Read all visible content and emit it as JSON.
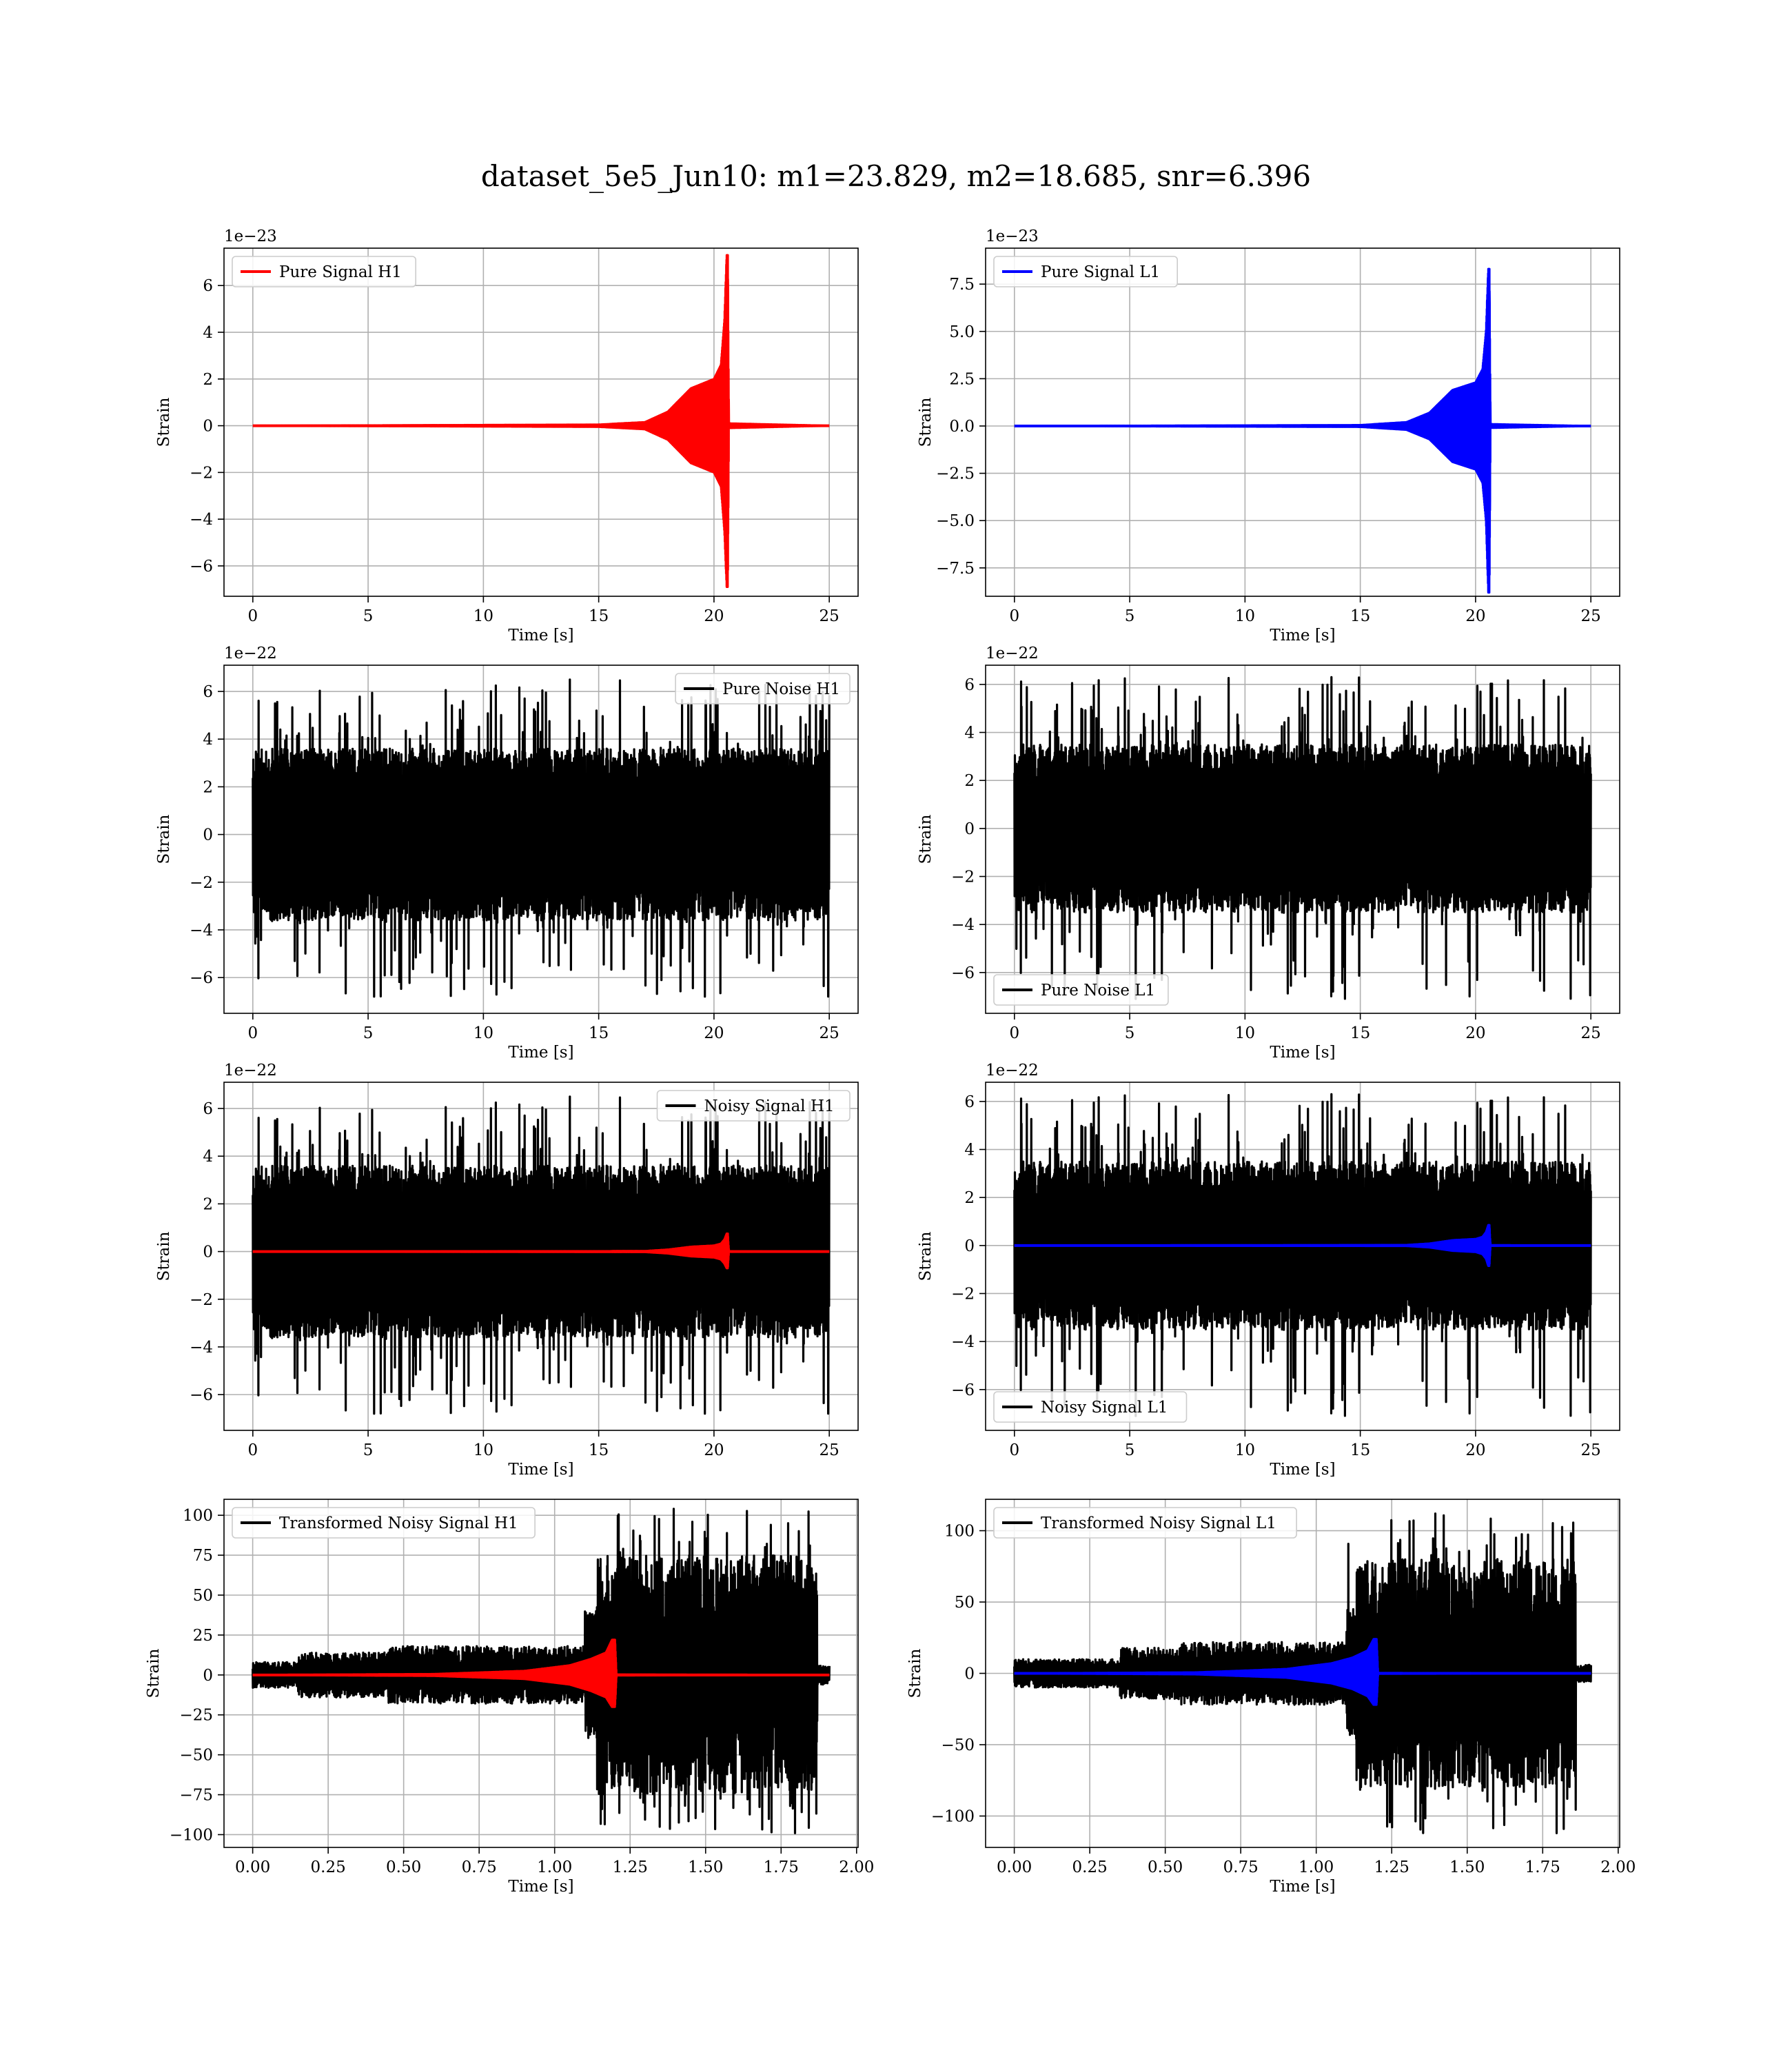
{
  "figure": {
    "suptitle": "dataset_5e5_Jun10: m1=23.829, m2=18.685, snr=6.396"
  },
  "chart_data": [
    {
      "id": "pure-signal-h1",
      "type": "line",
      "xlabel": "Time [s]",
      "ylabel": "Strain",
      "offset_label": "1e−23",
      "xlim": [
        -1.25,
        26.25
      ],
      "ylim": [
        -7.3,
        7.6
      ],
      "xticks": [
        0,
        5,
        10,
        15,
        20,
        25
      ],
      "xtick_labels": [
        "0",
        "5",
        "10",
        "15",
        "20",
        "25"
      ],
      "yticks": [
        -6,
        -4,
        -2,
        0,
        2,
        4,
        6
      ],
      "ytick_labels": [
        "−6",
        "−4",
        "−2",
        "0",
        "2",
        "4",
        "6"
      ],
      "grid": true,
      "legend": {
        "position": "upper-left"
      },
      "series": [
        {
          "name": "Pure Signal H1",
          "color": "#ff0000",
          "kind": "chirp",
          "x_range": [
            0,
            25
          ],
          "merger_time": 20.6,
          "envelope": [
            [
              0,
              0.0
            ],
            [
              15,
              0.05
            ],
            [
              17,
              0.15
            ],
            [
              18,
              0.6
            ],
            [
              19,
              1.6
            ],
            [
              20,
              2.0
            ],
            [
              20.3,
              2.6
            ],
            [
              20.45,
              4.5
            ],
            [
              20.55,
              7.3
            ],
            [
              20.6,
              7.3
            ],
            [
              20.65,
              0.1
            ],
            [
              25,
              0.0
            ]
          ],
          "envelope_neg": [
            [
              0,
              0.0
            ],
            [
              15,
              0.05
            ],
            [
              17,
              0.15
            ],
            [
              18,
              0.6
            ],
            [
              19,
              1.6
            ],
            [
              20,
              2.0
            ],
            [
              20.3,
              2.6
            ],
            [
              20.45,
              4.5
            ],
            [
              20.55,
              6.9
            ],
            [
              20.6,
              6.9
            ],
            [
              20.65,
              0.1
            ],
            [
              25,
              0.0
            ]
          ]
        }
      ]
    },
    {
      "id": "pure-signal-l1",
      "type": "line",
      "xlabel": "Time [s]",
      "ylabel": "Strain",
      "offset_label": "1e−23",
      "xlim": [
        -1.25,
        26.25
      ],
      "ylim": [
        -9.0,
        9.4
      ],
      "xticks": [
        0,
        5,
        10,
        15,
        20,
        25
      ],
      "xtick_labels": [
        "0",
        "5",
        "10",
        "15",
        "20",
        "25"
      ],
      "yticks": [
        -7.5,
        -5.0,
        -2.5,
        0.0,
        2.5,
        5.0,
        7.5
      ],
      "ytick_labels": [
        "−7.5",
        "−5.0",
        "−2.5",
        "0.0",
        "2.5",
        "5.0",
        "7.5"
      ],
      "grid": true,
      "legend": {
        "position": "upper-left"
      },
      "series": [
        {
          "name": "Pure Signal L1",
          "color": "#0000ff",
          "kind": "chirp",
          "x_range": [
            0,
            25
          ],
          "merger_time": 20.6,
          "envelope": [
            [
              0,
              0.0
            ],
            [
              15,
              0.05
            ],
            [
              17,
              0.2
            ],
            [
              18,
              0.7
            ],
            [
              19,
              1.9
            ],
            [
              20,
              2.3
            ],
            [
              20.3,
              3.0
            ],
            [
              20.45,
              5.0
            ],
            [
              20.55,
              8.3
            ],
            [
              20.6,
              8.3
            ],
            [
              20.65,
              0.1
            ],
            [
              25,
              0.0
            ]
          ],
          "envelope_neg": [
            [
              0,
              0.0
            ],
            [
              15,
              0.05
            ],
            [
              17,
              0.2
            ],
            [
              18,
              0.7
            ],
            [
              19,
              1.9
            ],
            [
              20,
              2.3
            ],
            [
              20.3,
              3.0
            ],
            [
              20.45,
              5.0
            ],
            [
              20.55,
              8.8
            ],
            [
              20.6,
              8.8
            ],
            [
              20.65,
              0.1
            ],
            [
              25,
              0.0
            ]
          ]
        }
      ]
    },
    {
      "id": "pure-noise-h1",
      "type": "line",
      "xlabel": "Time [s]",
      "ylabel": "Strain",
      "offset_label": "1e−22",
      "xlim": [
        -1.25,
        26.25
      ],
      "ylim": [
        -7.5,
        7.1
      ],
      "xticks": [
        0,
        5,
        10,
        15,
        20,
        25
      ],
      "xtick_labels": [
        "0",
        "5",
        "10",
        "15",
        "20",
        "25"
      ],
      "yticks": [
        -6,
        -4,
        -2,
        0,
        2,
        4,
        6
      ],
      "ytick_labels": [
        "−6",
        "−4",
        "−2",
        "0",
        "2",
        "4",
        "6"
      ],
      "grid": true,
      "legend": {
        "position": "upper-right"
      },
      "series": [
        {
          "name": "Pure Noise H1",
          "color": "#000000",
          "kind": "noise",
          "x_range": [
            0,
            25
          ],
          "band": 3.6,
          "spike_max": 6.5,
          "spike_min": -6.8,
          "seed": 11
        }
      ]
    },
    {
      "id": "pure-noise-l1",
      "type": "line",
      "xlabel": "Time [s]",
      "ylabel": "Strain",
      "offset_label": "1e−22",
      "xlim": [
        -1.25,
        26.25
      ],
      "ylim": [
        -7.7,
        6.8
      ],
      "xticks": [
        0,
        5,
        10,
        15,
        20,
        25
      ],
      "xtick_labels": [
        "0",
        "5",
        "10",
        "15",
        "20",
        "25"
      ],
      "yticks": [
        -6,
        -4,
        -2,
        0,
        2,
        4,
        6
      ],
      "ytick_labels": [
        "−6",
        "−4",
        "−2",
        "0",
        "2",
        "4",
        "6"
      ],
      "grid": true,
      "legend": {
        "position": "lower-left"
      },
      "series": [
        {
          "name": "Pure Noise L1",
          "color": "#000000",
          "kind": "noise",
          "x_range": [
            0,
            25
          ],
          "band": 3.5,
          "spike_max": 6.3,
          "spike_min": -7.1,
          "seed": 23
        }
      ]
    },
    {
      "id": "noisy-signal-h1",
      "type": "line",
      "xlabel": "Time [s]",
      "ylabel": "Strain",
      "offset_label": "1e−22",
      "xlim": [
        -1.25,
        26.25
      ],
      "ylim": [
        -7.5,
        7.1
      ],
      "xticks": [
        0,
        5,
        10,
        15,
        20,
        25
      ],
      "xtick_labels": [
        "0",
        "5",
        "10",
        "15",
        "20",
        "25"
      ],
      "yticks": [
        -6,
        -4,
        -2,
        0,
        2,
        4,
        6
      ],
      "ytick_labels": [
        "−6",
        "−4",
        "−2",
        "0",
        "2",
        "4",
        "6"
      ],
      "grid": true,
      "legend": {
        "position": "upper-right"
      },
      "series": [
        {
          "name": "Noisy Signal H1",
          "color": "#000000",
          "kind": "noise",
          "x_range": [
            0,
            25
          ],
          "band": 3.6,
          "spike_max": 6.5,
          "spike_min": -6.8,
          "seed": 11
        },
        {
          "color": "#ff0000",
          "kind": "chirp",
          "x_range": [
            0,
            25
          ],
          "merger_time": 20.6,
          "envelope": [
            [
              0,
              0.0
            ],
            [
              17,
              0.02
            ],
            [
              18,
              0.08
            ],
            [
              19,
              0.2
            ],
            [
              20,
              0.25
            ],
            [
              20.3,
              0.33
            ],
            [
              20.45,
              0.5
            ],
            [
              20.55,
              0.75
            ],
            [
              20.6,
              0.75
            ],
            [
              20.65,
              0.01
            ],
            [
              25,
              0.0
            ]
          ],
          "envelope_neg": [
            [
              0,
              0.0
            ],
            [
              17,
              0.02
            ],
            [
              18,
              0.08
            ],
            [
              19,
              0.2
            ],
            [
              20,
              0.25
            ],
            [
              20.3,
              0.33
            ],
            [
              20.45,
              0.5
            ],
            [
              20.55,
              0.7
            ],
            [
              20.6,
              0.7
            ],
            [
              20.65,
              0.01
            ],
            [
              25,
              0.0
            ]
          ]
        }
      ]
    },
    {
      "id": "noisy-signal-l1",
      "type": "line",
      "xlabel": "Time [s]",
      "ylabel": "Strain",
      "offset_label": "1e−22",
      "xlim": [
        -1.25,
        26.25
      ],
      "ylim": [
        -7.7,
        6.8
      ],
      "xticks": [
        0,
        5,
        10,
        15,
        20,
        25
      ],
      "xtick_labels": [
        "0",
        "5",
        "10",
        "15",
        "20",
        "25"
      ],
      "yticks": [
        -6,
        -4,
        -2,
        0,
        2,
        4,
        6
      ],
      "ytick_labels": [
        "−6",
        "−4",
        "−2",
        "0",
        "2",
        "4",
        "6"
      ],
      "grid": true,
      "legend": {
        "position": "lower-left"
      },
      "series": [
        {
          "name": "Noisy Signal L1",
          "color": "#000000",
          "kind": "noise",
          "x_range": [
            0,
            25
          ],
          "band": 3.5,
          "spike_max": 6.3,
          "spike_min": -7.1,
          "seed": 23
        },
        {
          "color": "#0000ff",
          "kind": "chirp",
          "x_range": [
            0,
            25
          ],
          "merger_time": 20.6,
          "envelope": [
            [
              0,
              0.0
            ],
            [
              17,
              0.02
            ],
            [
              18,
              0.08
            ],
            [
              19,
              0.22
            ],
            [
              20,
              0.27
            ],
            [
              20.3,
              0.36
            ],
            [
              20.45,
              0.55
            ],
            [
              20.55,
              0.85
            ],
            [
              20.6,
              0.85
            ],
            [
              20.65,
              0.01
            ],
            [
              25,
              0.0
            ]
          ],
          "envelope_neg": [
            [
              0,
              0.0
            ],
            [
              17,
              0.02
            ],
            [
              18,
              0.08
            ],
            [
              19,
              0.22
            ],
            [
              20,
              0.27
            ],
            [
              20.3,
              0.36
            ],
            [
              20.45,
              0.55
            ],
            [
              20.55,
              0.85
            ],
            [
              20.6,
              0.85
            ],
            [
              20.65,
              0.01
            ],
            [
              25,
              0.0
            ]
          ]
        }
      ]
    },
    {
      "id": "transformed-noisy-signal-h1",
      "type": "line",
      "xlabel": "Time [s]",
      "ylabel": "Strain",
      "xlim": [
        -0.095,
        2.005
      ],
      "ylim": [
        -108,
        110
      ],
      "xticks": [
        0.0,
        0.25,
        0.5,
        0.75,
        1.0,
        1.25,
        1.5,
        1.75,
        2.0
      ],
      "xtick_labels": [
        "0.00",
        "0.25",
        "0.50",
        "0.75",
        "1.00",
        "1.25",
        "1.50",
        "1.75",
        "2.00"
      ],
      "yticks": [
        -100,
        -75,
        -50,
        -25,
        0,
        25,
        50,
        75,
        100
      ],
      "ytick_labels": [
        "−100",
        "−75",
        "−50",
        "−25",
        "0",
        "25",
        "50",
        "75",
        "100"
      ],
      "grid": true,
      "legend": {
        "position": "upper-left"
      },
      "series": [
        {
          "name": "Transformed Noisy Signal H1",
          "color": "#000000",
          "kind": "transformed-noise",
          "x_range": [
            0,
            1.91
          ],
          "segments": [
            [
              0,
              0.15,
              8
            ],
            [
              0.15,
              0.45,
              14
            ],
            [
              0.45,
              1.1,
              18
            ],
            [
              1.1,
              1.14,
              40
            ],
            [
              1.14,
              1.87,
              75
            ],
            [
              1.87,
              1.91,
              6
            ]
          ],
          "peak_max": 104,
          "peak_min": -99,
          "seed": 41
        },
        {
          "color": "#ff0000",
          "kind": "chirp",
          "x_range": [
            0,
            1.91
          ],
          "merger_time": 1.2,
          "envelope": [
            [
              0,
              0.0
            ],
            [
              0.6,
              0.6
            ],
            [
              0.9,
              2.5
            ],
            [
              1.05,
              6
            ],
            [
              1.12,
              10
            ],
            [
              1.17,
              14
            ],
            [
              1.19,
              22
            ],
            [
              1.2,
              22
            ],
            [
              1.205,
              0.3
            ],
            [
              1.91,
              0.0
            ]
          ],
          "envelope_neg": [
            [
              0,
              0.0
            ],
            [
              0.6,
              0.6
            ],
            [
              0.9,
              2.5
            ],
            [
              1.05,
              6
            ],
            [
              1.12,
              10
            ],
            [
              1.17,
              14
            ],
            [
              1.19,
              20
            ],
            [
              1.2,
              20
            ],
            [
              1.205,
              0.3
            ],
            [
              1.91,
              0.0
            ]
          ]
        }
      ]
    },
    {
      "id": "transformed-noisy-signal-l1",
      "type": "line",
      "xlabel": "Time [s]",
      "ylabel": "Strain",
      "xlim": [
        -0.095,
        2.005
      ],
      "ylim": [
        -122,
        122
      ],
      "xticks": [
        0.0,
        0.25,
        0.5,
        0.75,
        1.0,
        1.25,
        1.5,
        1.75,
        2.0
      ],
      "xtick_labels": [
        "0.00",
        "0.25",
        "0.50",
        "0.75",
        "1.00",
        "1.25",
        "1.50",
        "1.75",
        "2.00"
      ],
      "yticks": [
        -100,
        -50,
        0,
        50,
        100
      ],
      "ytick_labels": [
        "−100",
        "−50",
        "0",
        "50",
        "100"
      ],
      "grid": true,
      "legend": {
        "position": "upper-left"
      },
      "series": [
        {
          "name": "Transformed Noisy Signal L1",
          "color": "#000000",
          "kind": "transformed-noise",
          "x_range": [
            0,
            1.91
          ],
          "segments": [
            [
              0,
              0.35,
              10
            ],
            [
              0.35,
              0.55,
              18
            ],
            [
              0.55,
              1.1,
              22
            ],
            [
              1.1,
              1.13,
              45
            ],
            [
              1.13,
              1.86,
              80
            ],
            [
              1.86,
              1.91,
              6
            ]
          ],
          "peak_max": 112,
          "peak_min": -112,
          "seed": 57
        },
        {
          "color": "#0000ff",
          "kind": "chirp",
          "x_range": [
            0,
            1.91
          ],
          "merger_time": 1.2,
          "envelope": [
            [
              0,
              0.0
            ],
            [
              0.6,
              0.7
            ],
            [
              0.9,
              3
            ],
            [
              1.05,
              7
            ],
            [
              1.12,
              11
            ],
            [
              1.17,
              16
            ],
            [
              1.19,
              24
            ],
            [
              1.2,
              24
            ],
            [
              1.205,
              0.3
            ],
            [
              1.91,
              0.0
            ]
          ],
          "envelope_neg": [
            [
              0,
              0.0
            ],
            [
              0.6,
              0.7
            ],
            [
              0.9,
              3
            ],
            [
              1.05,
              7
            ],
            [
              1.12,
              11
            ],
            [
              1.17,
              16
            ],
            [
              1.19,
              22
            ],
            [
              1.2,
              22
            ],
            [
              1.205,
              0.3
            ],
            [
              1.91,
              0.0
            ]
          ]
        }
      ]
    }
  ]
}
